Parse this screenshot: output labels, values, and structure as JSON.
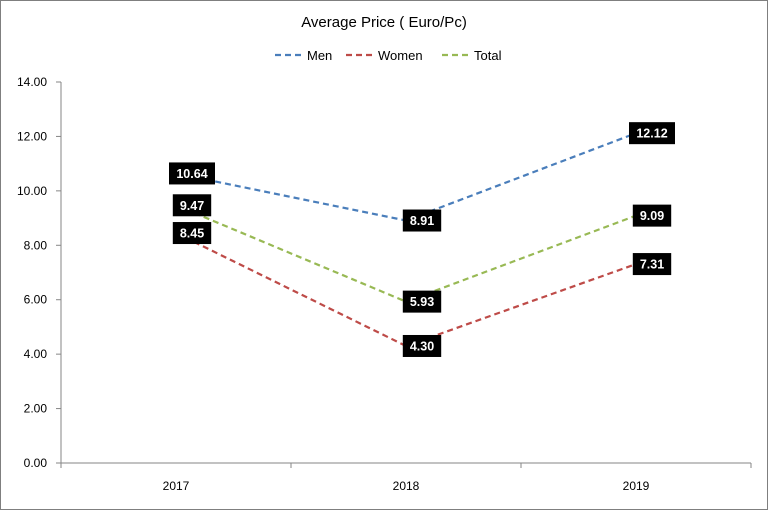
{
  "chart_data": {
    "type": "line",
    "title": "Average Price ( Euro/Pc)",
    "categories": [
      "2017",
      "2018",
      "2019"
    ],
    "series": [
      {
        "name": "Men",
        "values": [
          10.64,
          8.91,
          12.12
        ],
        "color": "#4a7ebb",
        "labels": [
          "10.64",
          "8.91",
          "12.12"
        ]
      },
      {
        "name": "Women",
        "values": [
          8.45,
          4.3,
          7.31
        ],
        "color": "#be4b48",
        "labels": [
          "8.45",
          "4.30",
          "7.31"
        ]
      },
      {
        "name": "Total",
        "values": [
          9.47,
          5.93,
          9.09
        ],
        "color": "#98b954",
        "labels": [
          "9.47",
          "5.93",
          "9.09"
        ]
      }
    ],
    "y_ticks": [
      "0.00",
      "2.00",
      "4.00",
      "6.00",
      "8.00",
      "10.00",
      "12.00",
      "14.00"
    ],
    "ylim": [
      0,
      14
    ],
    "line_style": "dashed",
    "legend_position": "top",
    "grid": false
  }
}
